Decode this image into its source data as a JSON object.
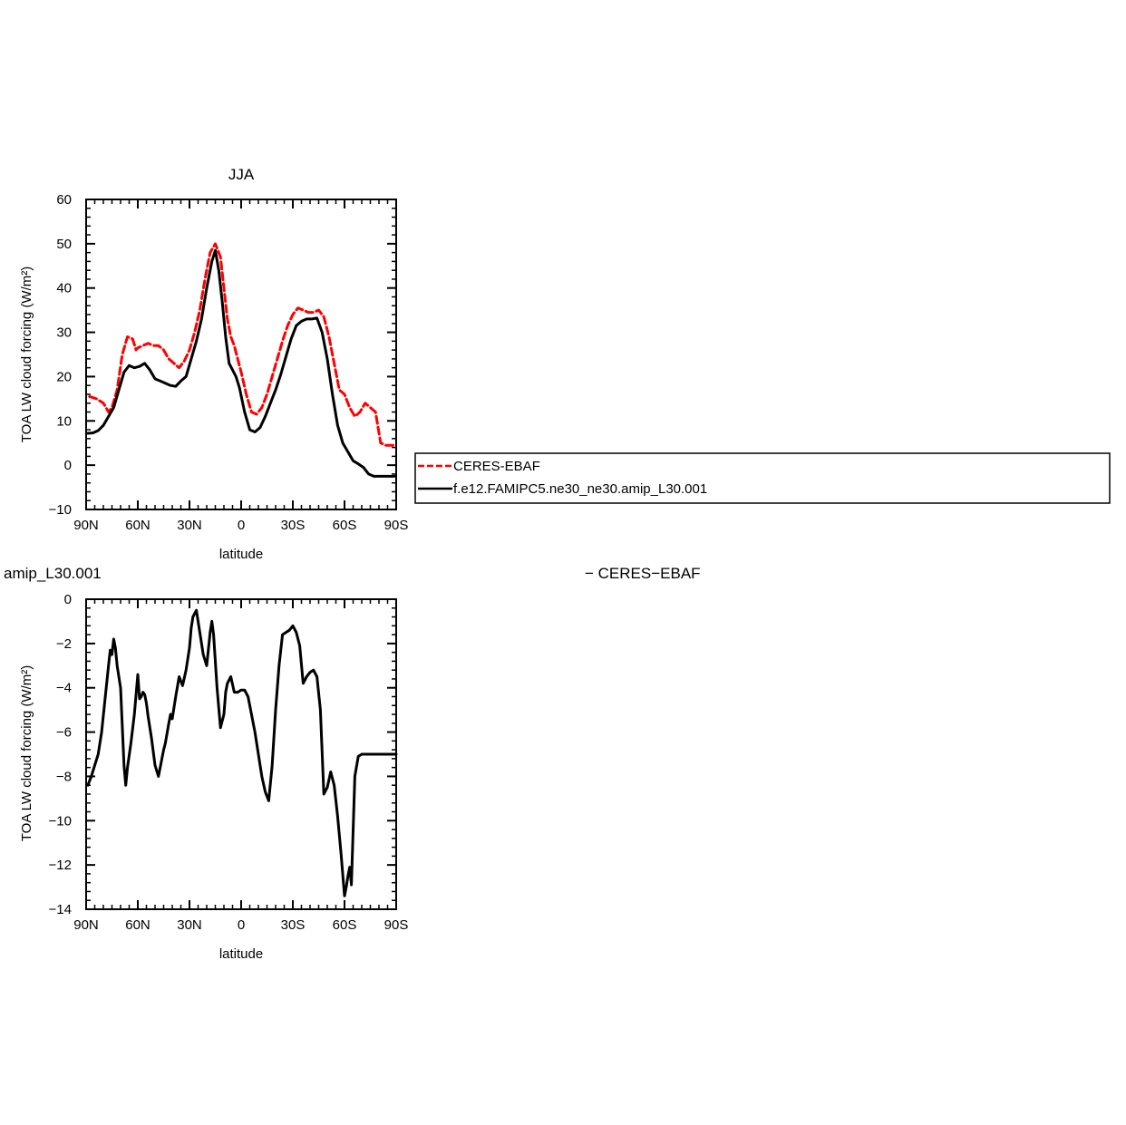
{
  "chart_data": [
    {
      "type": "line",
      "title": "JJA",
      "xlabel": "latitude",
      "ylabel": "TOA LW cloud forcing (W/m²)",
      "xlim": [
        90,
        -90
      ],
      "ylim": [
        -10,
        60
      ],
      "x_ticks": [
        {
          "value": 90,
          "label": "90N"
        },
        {
          "value": 60,
          "label": "60N"
        },
        {
          "value": 30,
          "label": "30N"
        },
        {
          "value": 0,
          "label": "0"
        },
        {
          "value": -30,
          "label": "30S"
        },
        {
          "value": -60,
          "label": "60S"
        },
        {
          "value": -90,
          "label": "90S"
        }
      ],
      "y_ticks": [
        -10,
        0,
        10,
        20,
        30,
        40,
        50,
        60
      ],
      "legend": {
        "placement": "outside-right"
      },
      "series": [
        {
          "name": "CERES-EBAF",
          "color": "#ff0000",
          "dash": "dashed",
          "x": [
            88,
            84,
            80,
            77,
            75,
            72,
            69,
            66,
            63,
            61,
            60,
            57,
            54,
            51,
            48,
            45,
            42,
            39,
            36,
            33,
            30,
            27,
            24,
            21,
            18,
            15,
            12,
            10,
            8,
            6,
            4,
            2,
            0,
            -3,
            -6,
            -9,
            -12,
            -15,
            -18,
            -21,
            -24,
            -27,
            -30,
            -33,
            -36,
            -39,
            -42,
            -45,
            -48,
            -51,
            -54,
            -57,
            -60,
            -63,
            -66,
            -69,
            -72,
            -75,
            -78,
            -81,
            -84,
            -87,
            -89
          ],
          "y": [
            15.5,
            15,
            14,
            12,
            13,
            17,
            25,
            29,
            28.5,
            26,
            26.5,
            27,
            27.5,
            27,
            27,
            26,
            24,
            23,
            22,
            23.5,
            26,
            30,
            35,
            42,
            48,
            50,
            47,
            40,
            33,
            29,
            27,
            24,
            21,
            16,
            12,
            11.5,
            13,
            16,
            20,
            24,
            28,
            31.5,
            34,
            35.5,
            35,
            34.5,
            34.5,
            35,
            33.5,
            29,
            23,
            17,
            16,
            13,
            11,
            12,
            14,
            13,
            12,
            5,
            4.5,
            4.5,
            4.5
          ]
        },
        {
          "name": "f.e12.FAMIPC5.ne30_ne30.amip_L30.001",
          "color": "#000000",
          "dash": "solid",
          "x": [
            89,
            86,
            83,
            80,
            77,
            74,
            71,
            68,
            65,
            62,
            59,
            56,
            53,
            50,
            47,
            44,
            41,
            38,
            35,
            32,
            29,
            26,
            23,
            20,
            17,
            15,
            13,
            11,
            9,
            7,
            5,
            3,
            1,
            -2,
            -5,
            -8,
            -11,
            -14,
            -17,
            -20,
            -23,
            -26,
            -29,
            -32,
            -35,
            -38,
            -41,
            -44,
            -47,
            -50,
            -53,
            -56,
            -59,
            -62,
            -65,
            -68,
            -71,
            -74,
            -77,
            -80,
            -83,
            -86,
            -89
          ],
          "y": [
            7.2,
            7.3,
            7.8,
            9,
            11,
            13,
            17,
            21,
            22.5,
            22,
            22.3,
            23,
            21.5,
            19.5,
            19,
            18.5,
            18,
            17.8,
            19,
            20,
            24,
            28,
            33,
            40,
            46,
            48.5,
            44,
            37,
            29,
            23,
            21.5,
            20,
            17.5,
            12,
            8,
            7.5,
            8.5,
            11,
            14,
            17,
            20.5,
            24.5,
            28.5,
            31.5,
            32.5,
            33,
            33,
            33.2,
            30,
            24,
            16,
            9,
            5,
            3,
            1,
            0.3,
            -0.5,
            -2,
            -2.5,
            -2.5,
            -2.5,
            -2.5,
            -2.5
          ]
        }
      ]
    },
    {
      "type": "line",
      "title": "amip_L30.001",
      "title2": "− CERES−EBAF",
      "xlabel": "latitude",
      "ylabel": "TOA LW cloud forcing (W/m²)",
      "xlim": [
        90,
        -90
      ],
      "ylim": [
        -14,
        0
      ],
      "x_ticks": [
        {
          "value": 90,
          "label": "90N"
        },
        {
          "value": 60,
          "label": "60N"
        },
        {
          "value": 30,
          "label": "30N"
        },
        {
          "value": 0,
          "label": "0"
        },
        {
          "value": -30,
          "label": "30S"
        },
        {
          "value": -60,
          "label": "60S"
        },
        {
          "value": -90,
          "label": "90S"
        }
      ],
      "y_ticks": [
        -14,
        -12,
        -10,
        -8,
        -6,
        -4,
        -2,
        0
      ],
      "series": [
        {
          "color": "#000000",
          "dash": "solid",
          "x": [
            89,
            87,
            85,
            83,
            81,
            79,
            77,
            76,
            75,
            74,
            73,
            72,
            70,
            68,
            67,
            66,
            64,
            62,
            60,
            59,
            58,
            57,
            56,
            55,
            54,
            52,
            50,
            48,
            46,
            45,
            44,
            42,
            41,
            40,
            38,
            36,
            34,
            32,
            30,
            29,
            28,
            26,
            24,
            22,
            20,
            18,
            17,
            16,
            14,
            12,
            10,
            9,
            8,
            6,
            4,
            2,
            0,
            -2,
            -4,
            -6,
            -8,
            -10,
            -12,
            -14,
            -16,
            -18,
            -20,
            -22,
            -24,
            -26,
            -28,
            -30,
            -32,
            -34,
            -36,
            -38,
            -40,
            -42,
            -44,
            -46,
            -48,
            -50,
            -52,
            -54,
            -56,
            -58,
            -60,
            -61,
            -62,
            -63,
            -64,
            -66,
            -68,
            -70,
            -72,
            -74,
            -76,
            -78,
            -80,
            -81,
            -82,
            -83,
            -84,
            -85,
            -86,
            -87,
            -88,
            -89,
            -90
          ],
          "y": [
            -8.4,
            -8,
            -7.5,
            -7,
            -6,
            -4.5,
            -3,
            -2.3,
            -2.5,
            -1.8,
            -2.2,
            -3,
            -4,
            -7.5,
            -8.4,
            -7.6,
            -6.5,
            -5.2,
            -3.4,
            -4.5,
            -4.4,
            -4.2,
            -4.3,
            -4.7,
            -5.3,
            -6.3,
            -7.5,
            -8,
            -7.2,
            -6.8,
            -6.5,
            -5.6,
            -5.2,
            -5.4,
            -4.4,
            -3.5,
            -3.9,
            -3.2,
            -2.2,
            -1.3,
            -0.8,
            -0.5,
            -1.5,
            -2.5,
            -3,
            -1.5,
            -1,
            -1.6,
            -4,
            -5.8,
            -5.2,
            -4.2,
            -3.8,
            -3.5,
            -4.2,
            -4.2,
            -4.1,
            -4.1,
            -4.4,
            -5.2,
            -6,
            -7,
            -8,
            -8.7,
            -9.1,
            -7.5,
            -5,
            -3,
            -1.6,
            -1.5,
            -1.4,
            -1.2,
            -1.5,
            -2.1,
            -3.8,
            -3.5,
            -3.3,
            -3.2,
            -3.5,
            -5,
            -8.8,
            -8.5,
            -7.8,
            -8.4,
            -9.8,
            -11.5,
            -13.4,
            -13,
            -12.5,
            -12.1,
            -12.9,
            -8,
            -7.1,
            -7,
            -7,
            -7,
            -7,
            -7,
            -7,
            -7,
            -7,
            -7,
            -7,
            -7,
            -7,
            -7,
            -7,
            -7,
            -7
          ]
        }
      ]
    }
  ]
}
